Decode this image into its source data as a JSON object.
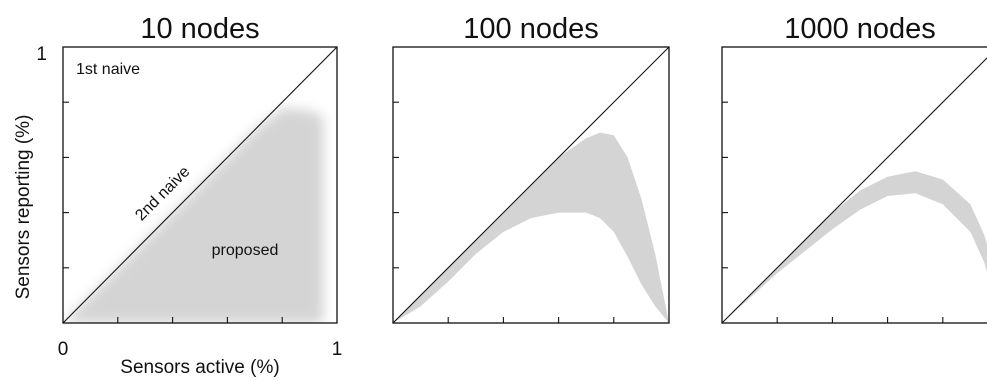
{
  "chart_data": [
    {
      "type": "area",
      "title": "10 nodes",
      "xlabel": "Sensors active (%)",
      "ylabel": "Sensors reporting (%)",
      "xlim": [
        0,
        1
      ],
      "ylim": [
        0,
        1
      ],
      "x_tick_labels": [
        "0",
        "1"
      ],
      "y_tick_labels": [
        "1"
      ],
      "grid": false,
      "reference_line": {
        "from": [
          0,
          0
        ],
        "to": [
          1,
          1
        ]
      },
      "annotations": [
        "1st naive",
        "2nd naive",
        "proposed"
      ],
      "region_color": "#d4d4d4",
      "series": [
        {
          "x": [
            0.0,
            0.1,
            0.2,
            0.3,
            0.4,
            0.5,
            0.6,
            0.7,
            0.8,
            0.9,
            0.95
          ],
          "y_upper": [
            0.0,
            0.1,
            0.2,
            0.3,
            0.4,
            0.5,
            0.6,
            0.7,
            0.78,
            0.77,
            0.75
          ],
          "y_lower": [
            0.0,
            0.0,
            0.0,
            0.0,
            0.0,
            0.0,
            0.0,
            0.0,
            0.0,
            0.0,
            0.0
          ]
        }
      ]
    },
    {
      "type": "area",
      "title": "100 nodes",
      "xlim": [
        0,
        1
      ],
      "ylim": [
        0,
        1
      ],
      "grid": false,
      "reference_line": {
        "from": [
          0,
          0
        ],
        "to": [
          1,
          1
        ]
      },
      "region_color": "#d4d4d4",
      "series": [
        {
          "x": [
            0.0,
            0.1,
            0.2,
            0.3,
            0.4,
            0.5,
            0.6,
            0.7,
            0.75,
            0.8,
            0.85,
            0.9,
            0.95,
            1.0
          ],
          "y_upper": [
            0.0,
            0.1,
            0.2,
            0.3,
            0.4,
            0.5,
            0.6,
            0.67,
            0.69,
            0.68,
            0.6,
            0.45,
            0.25,
            0.0
          ],
          "y_lower": [
            0.0,
            0.06,
            0.15,
            0.25,
            0.33,
            0.38,
            0.4,
            0.4,
            0.38,
            0.33,
            0.24,
            0.14,
            0.06,
            0.0
          ]
        }
      ]
    },
    {
      "type": "area",
      "title": "1000 nodes",
      "xlim": [
        0,
        1
      ],
      "ylim": [
        0,
        1
      ],
      "grid": false,
      "reference_line": {
        "from": [
          0,
          0
        ],
        "to": [
          1,
          1
        ]
      },
      "region_color": "#d4d4d4",
      "series": [
        {
          "x": [
            0.0,
            0.1,
            0.2,
            0.3,
            0.4,
            0.5,
            0.6,
            0.7,
            0.8,
            0.9,
            0.95,
            1.0
          ],
          "y_upper": [
            0.0,
            0.1,
            0.2,
            0.3,
            0.4,
            0.48,
            0.53,
            0.55,
            0.52,
            0.43,
            0.32,
            0.15
          ],
          "y_lower": [
            0.0,
            0.09,
            0.18,
            0.26,
            0.34,
            0.41,
            0.46,
            0.47,
            0.43,
            0.33,
            0.22,
            0.05
          ]
        }
      ]
    }
  ]
}
